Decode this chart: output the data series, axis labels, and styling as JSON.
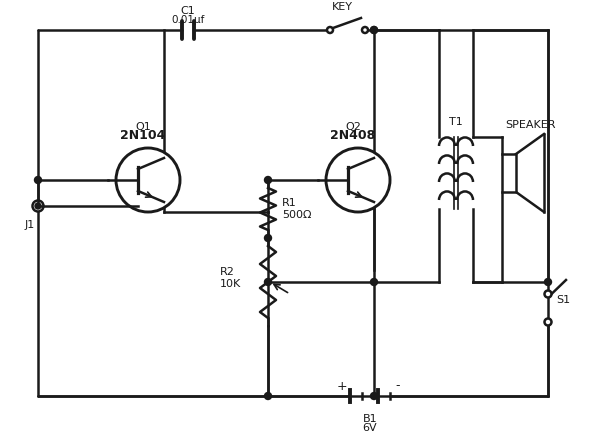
{
  "background_color": "#ffffff",
  "line_color": "#1a1a1a",
  "line_width": 1.8,
  "fig_w": 6.0,
  "fig_h": 4.38,
  "dpi": 100,
  "labels": {
    "C1": "C1",
    "C1_val": "0.01μf",
    "KEY": "KEY",
    "Q1": "Q1",
    "Q1_val": "2N104",
    "Q2": "Q2",
    "Q2_val": "2N408",
    "R1": "R1",
    "R1_val": "500Ω",
    "R2": "R2",
    "R2_val": "10K",
    "T1": "T1",
    "SPEAKER": "SPEAKER",
    "B1": "B1",
    "B1_val": "6V",
    "S1": "S1",
    "J1": "J1"
  }
}
